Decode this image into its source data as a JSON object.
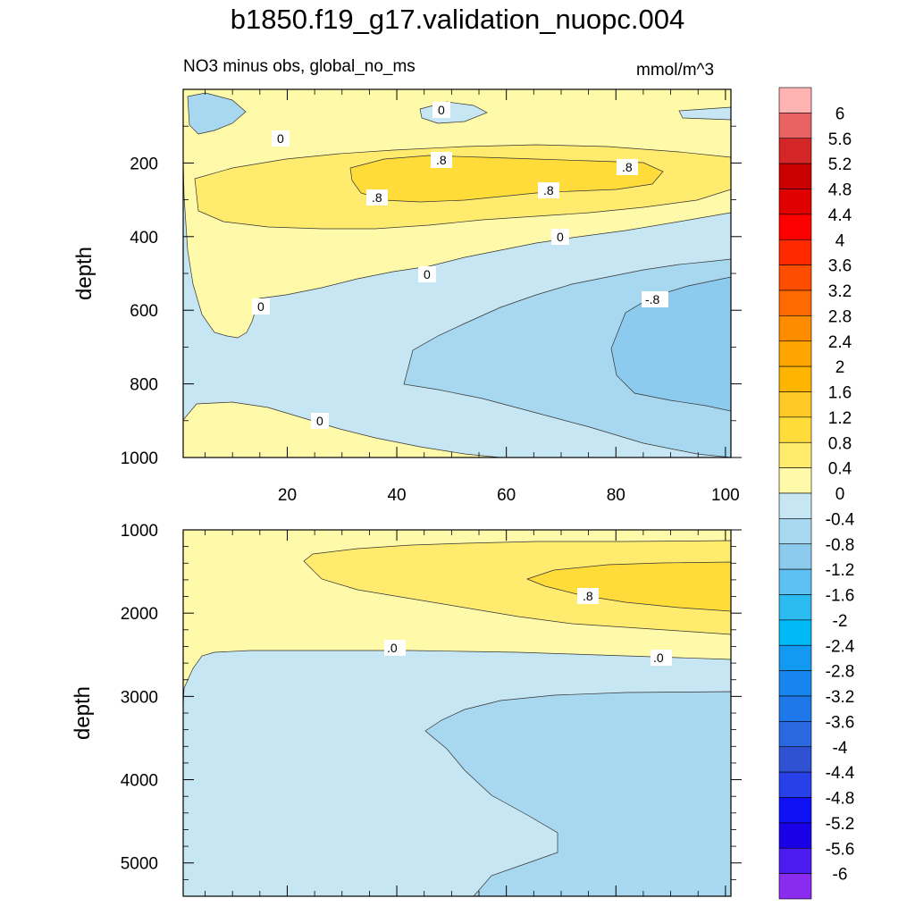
{
  "chart_data": [
    {
      "type": "heatmap",
      "title": "b1850.f19_g17.validation_nuopc.004",
      "subtitle": "NO3 minus obs, global_no_ms",
      "units": "mmol/m^3",
      "ylabel": "depth",
      "xlabel": "",
      "xlim": [
        1,
        101
      ],
      "ylim": [
        0,
        1000
      ],
      "x_ticks": [
        "20",
        "40",
        "60",
        "80",
        "100"
      ],
      "y_ticks": [
        "200",
        "400",
        "600",
        "800",
        "1000"
      ],
      "contour_labels": [
        "0",
        "0",
        ".8",
        ".8",
        ".8",
        ".8",
        "0",
        "0",
        "0",
        "-.8",
        "0"
      ]
    },
    {
      "type": "heatmap",
      "ylabel": "depth",
      "xlim": [
        1,
        101
      ],
      "ylim": [
        1000,
        5400
      ],
      "y_ticks": [
        "1000",
        "2000",
        "3000",
        "4000",
        "5000"
      ],
      "contour_labels": [
        ".8",
        ".0",
        ".0"
      ]
    }
  ],
  "colorbar": {
    "labels": [
      "6",
      "5.6",
      "5.2",
      "4.8",
      "4.4",
      "4",
      "3.6",
      "3.2",
      "2.8",
      "2.4",
      "2",
      "1.6",
      "1.2",
      "0.8",
      "0.4",
      "0",
      "-0.4",
      "-0.8",
      "-1.2",
      "-1.6",
      "-2",
      "-2.4",
      "-2.8",
      "-3.2",
      "-3.6",
      "-4",
      "-4.4",
      "-4.8",
      "-5.2",
      "-5.6",
      "-6"
    ],
    "colors": [
      "#FFB3B3",
      "#E86464",
      "#D42626",
      "#C80000",
      "#E00000",
      "#FF0000",
      "#FF2A00",
      "#FF4D00",
      "#FF6A00",
      "#FF8C00",
      "#FFA500",
      "#FFB400",
      "#FFC824",
      "#FFDC3A",
      "#FFEC6E",
      "#FFFAAA",
      "#C6E6F4",
      "#A8D8F0",
      "#8CCAEE",
      "#5FC0F3",
      "#2CBBF0",
      "#00BAF5",
      "#1499F0",
      "#1685EE",
      "#1E78EA",
      "#2A68E0",
      "#3052D2",
      "#2840E8",
      "#1010F4",
      "#1A00E6",
      "#4A1CF0",
      "#8A2CF0"
    ]
  },
  "colors": {
    "pos_light": "#FFFAAA",
    "pos_med": "#FFEC6E",
    "pos_dark": "#FFDC3A",
    "neg_light": "#C6E6F4",
    "neg_med": "#A8D8F0",
    "neg_dark": "#8CCAEE"
  }
}
